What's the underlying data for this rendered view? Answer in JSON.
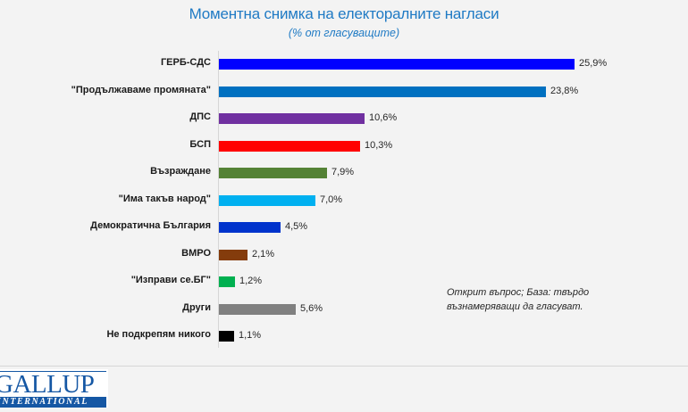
{
  "header": {
    "title": "Моментна снимка на електоралните нагласи",
    "subtitle": "(% от гласуващите)"
  },
  "note": "Открит въпрос; База: твърдо възнамеряващи да гласуват.",
  "logo": {
    "main": "GALLUP",
    "sub": "INTERNATIONAL"
  },
  "chart_data": {
    "type": "bar",
    "orientation": "horizontal",
    "title": "Моментна снимка на електоралните нагласи",
    "subtitle": "(% от гласуващите)",
    "xlabel": "",
    "ylabel": "",
    "unit": "%",
    "grid": false,
    "legend": null,
    "annotations": [
      "Открит въпрос; База: твърдо възнамеряващи да гласуват."
    ],
    "categories": [
      "ГЕРБ-СДС",
      "\"Продължаваме промяната\"",
      "ДПС",
      "БСП",
      "Възраждане",
      "\"Има такъв народ\"",
      "Демократична България",
      "ВМРО",
      "\"Изправи се.БГ\"",
      "Други",
      "Не подкрепям никого"
    ],
    "values": [
      25.9,
      23.8,
      10.6,
      10.3,
      7.9,
      7.0,
      4.5,
      2.1,
      1.2,
      5.6,
      1.1
    ],
    "value_labels": [
      "25,9%",
      "23,8%",
      "10,6%",
      "10,3%",
      "7,9%",
      "7,0%",
      "4,5%",
      "2,1%",
      "1,2%",
      "5,6%",
      "1,1%"
    ],
    "colors": [
      "#0000ff",
      "#0070c0",
      "#7030a0",
      "#ff0000",
      "#548235",
      "#00b0f0",
      "#0033cc",
      "#843c0c",
      "#00b050",
      "#808080",
      "#000000"
    ]
  }
}
